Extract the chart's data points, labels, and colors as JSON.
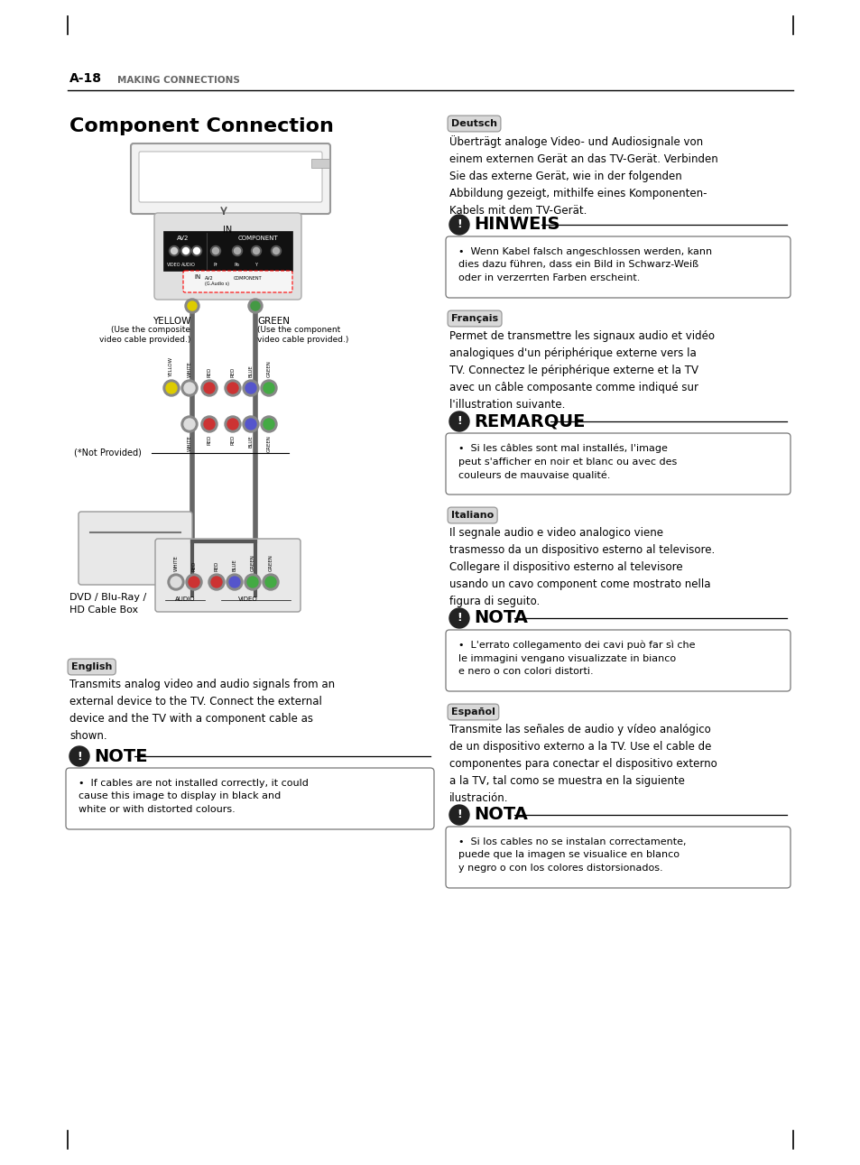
{
  "page_bg": "#ffffff",
  "fig_w": 9.54,
  "fig_h": 12.91,
  "dpi": 100,
  "header_a18": "A-18",
  "header_sub": "MAKING CONNECTIONS",
  "title": "Component Connection",
  "deutsch_body": "Überträgt analoge Video- und Audiosignale von\neinem externen Gerät an das TV-Gerät. Verbinden\nSie das externe Gerät, wie in der folgenden\nAbbildung gezeigt, mithilfe eines Komponenten-\nKabels mit dem TV-Gerät.",
  "hinweis_title": "HINWEIS",
  "hinweis_body": "Wenn Kabel falsch angeschlossen werden, kann\ndies dazu führen, dass ein Bild in Schwarz-Weiß\noder in verzerrten Farben erscheint.",
  "francais_body": "Permet de transmettre les signaux audio et vidéo\nanalogiques d'un périphérique externe vers la\nTV. Connectez le périphérique externe et la TV\navec un câble composante comme indiqué sur\nl'illustration suivante.",
  "remarque_title": "REMARQUE",
  "remarque_body": "Si les câbles sont mal installés, l'image\npeut s'afficher en noir et blanc ou avec des\ncouleurs de mauvaise qualité.",
  "italiano_body": "Il segnale audio e video analogico viene\ntrasmesso da un dispositivo esterno al televisore.\nCollegare il dispositivo esterno al televisore\nusando un cavo component come mostrato nella\nfigura di seguito.",
  "nota_it_title": "NOTA",
  "nota_it_body": "L'errato collegamento dei cavi può far sì che\nle immagini vengano visualizzate in bianco\ne nero o con colori distorti.",
  "espanol_body": "Transmite las señales de audio y vídeo analógico\nde un dispositivo externo a la TV. Use el cable de\ncomponentes para conectar el dispositivo externo\na la TV, tal como se muestra en la siguiente\nilustración.",
  "nota_es_title": "NOTA",
  "nota_es_body": "Si los cables no se instalan correctamente,\npuede que la imagen se visualice en blanco\ny negro o con los colores distorsionados.",
  "english_body": "Transmits analog video and audio signals from an\nexternal device to the TV. Connect the external\ndevice and the TV with a component cable as\nshown.",
  "note_en_title": "NOTE",
  "note_en_body": "If cables are not installed correctly, it could\ncause this image to display in black and\nwhite or with distorted colours.",
  "dvd_label": "DVD / Blu-Ray /\nHD Cable Box"
}
